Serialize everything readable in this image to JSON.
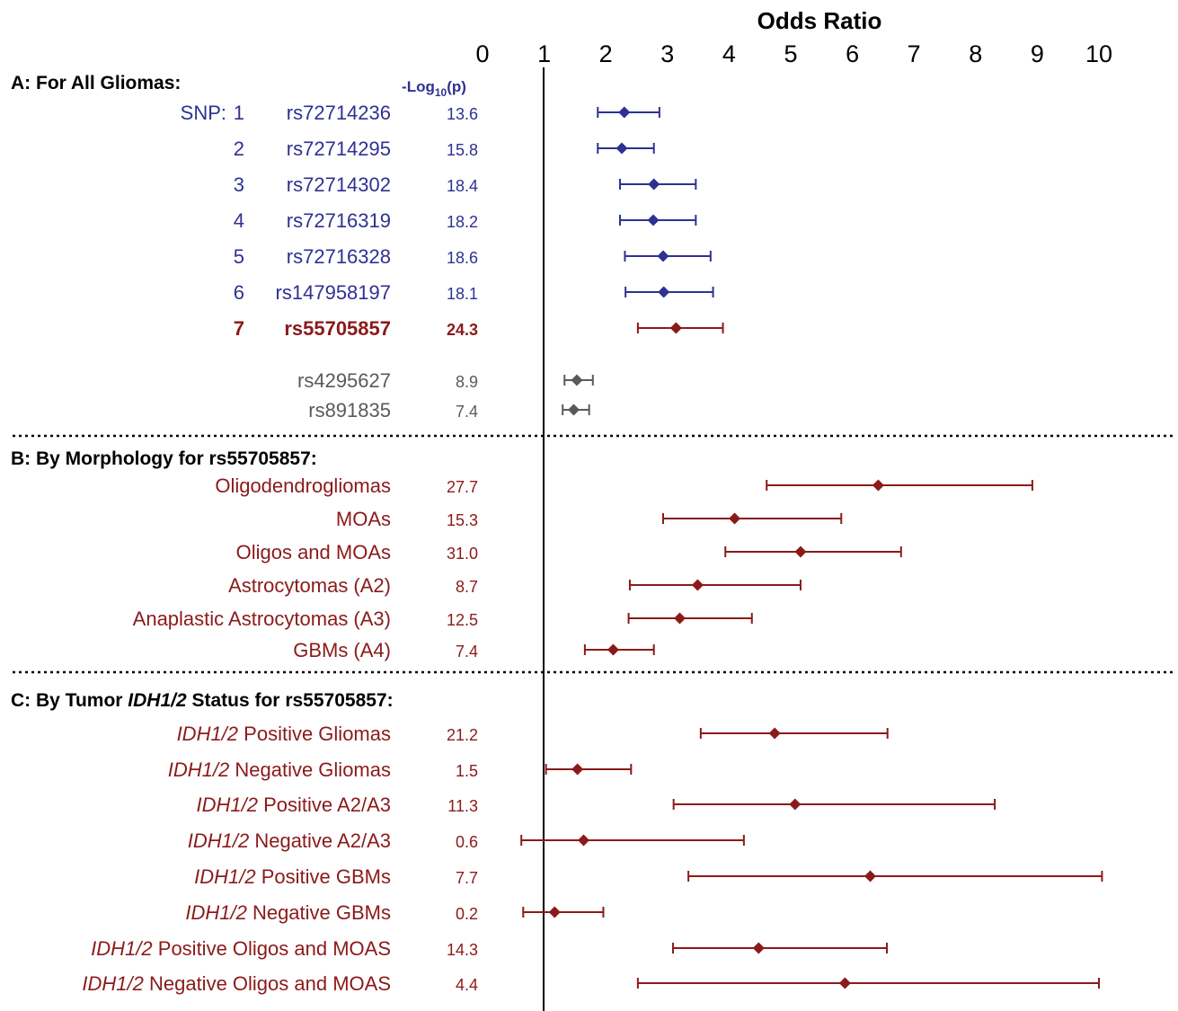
{
  "chart_data": {
    "type": "forest",
    "title": "Odds Ratio",
    "xlim": [
      0,
      10
    ],
    "xticks": [
      "0",
      "1",
      "2",
      "3",
      "4",
      "5",
      "6",
      "7",
      "8",
      "9",
      "10"
    ],
    "reference_line": 1,
    "pvalue_header": {
      "main": "-Log",
      "sub": "10",
      "tail": "(p)"
    },
    "colors": {
      "blue": "#2e3192",
      "red": "#8b1a1a",
      "gray": "#5a5a5a"
    },
    "sections": [
      {
        "title": "A: For All Gliomas:",
        "rows": [
          {
            "prefix": "SNP:",
            "num": "1",
            "label": "rs72714236",
            "p": "13.6",
            "or": 2.3,
            "lo": 1.87,
            "hi": 2.87,
            "color": "blue"
          },
          {
            "num": "2",
            "label": "rs72714295",
            "p": "15.8",
            "or": 2.26,
            "lo": 1.87,
            "hi": 2.78,
            "color": "blue"
          },
          {
            "num": "3",
            "label": "rs72714302",
            "p": "18.4",
            "or": 2.78,
            "lo": 2.23,
            "hi": 3.46,
            "color": "blue"
          },
          {
            "num": "4",
            "label": "rs72716319",
            "p": "18.2",
            "or": 2.77,
            "lo": 2.23,
            "hi": 3.46,
            "color": "blue"
          },
          {
            "num": "5",
            "label": "rs72716328",
            "p": "18.6",
            "or": 2.93,
            "lo": 2.31,
            "hi": 3.7,
            "color": "blue"
          },
          {
            "num": "6",
            "label": "rs147958197",
            "p": "18.1",
            "or": 2.94,
            "lo": 2.32,
            "hi": 3.74,
            "color": "blue"
          },
          {
            "num": "7",
            "label": "rs55705857",
            "p": "24.3",
            "or": 3.14,
            "lo": 2.52,
            "hi": 3.9,
            "color": "red",
            "bold": true
          },
          {
            "label": "rs4295627",
            "p": "8.9",
            "or": 1.53,
            "lo": 1.33,
            "hi": 1.79,
            "color": "gray"
          },
          {
            "label": "rs891835",
            "p": "7.4",
            "or": 1.48,
            "lo": 1.3,
            "hi": 1.73,
            "color": "gray"
          }
        ]
      },
      {
        "title": "B: By Morphology for rs55705857:",
        "rows": [
          {
            "label": "Oligodendrogliomas",
            "p": "27.7",
            "or": 6.42,
            "lo": 4.61,
            "hi": 8.92,
            "color": "red"
          },
          {
            "label": "MOAs",
            "p": "15.3",
            "or": 4.09,
            "lo": 2.93,
            "hi": 5.82,
            "color": "red"
          },
          {
            "label": "Oligos and MOAs",
            "p": "31.0",
            "or": 5.16,
            "lo": 3.94,
            "hi": 6.79,
            "color": "red"
          },
          {
            "label": "Astrocytomas (A2)",
            "p": "8.7",
            "or": 3.49,
            "lo": 2.39,
            "hi": 5.16,
            "color": "red"
          },
          {
            "label": "Anaplastic Astrocytomas (A3)",
            "p": "12.5",
            "or": 3.2,
            "lo": 2.37,
            "hi": 4.37,
            "color": "red"
          },
          {
            "label": "GBMs (A4)",
            "p": "7.4",
            "or": 2.12,
            "lo": 1.66,
            "hi": 2.78,
            "color": "red"
          }
        ]
      },
      {
        "title_pre": "C: By Tumor ",
        "title_em": "IDH1/2",
        "title_post": " Status for rs55705857:",
        "rows": [
          {
            "em": "IDH1/2",
            "label": " Positive Gliomas",
            "p": "21.2",
            "or": 4.74,
            "lo": 3.54,
            "hi": 6.57,
            "color": "red"
          },
          {
            "em": "IDH1/2",
            "label": " Negative Gliomas",
            "p": "1.5",
            "or": 1.54,
            "lo": 1.03,
            "hi": 2.41,
            "color": "red"
          },
          {
            "em": "IDH1/2",
            "label": " Positive A2/A3",
            "p": "11.3",
            "or": 5.07,
            "lo": 3.1,
            "hi": 8.31,
            "color": "red"
          },
          {
            "em": "IDH1/2",
            "label": " Negative A2/A3",
            "p": "0.6",
            "or": 1.64,
            "lo": 0.63,
            "hi": 4.24,
            "color": "red"
          },
          {
            "em": "IDH1/2",
            "label": " Positive GBMs",
            "p": "7.7",
            "or": 6.29,
            "lo": 3.34,
            "hi": 10.05,
            "color": "red"
          },
          {
            "em": "IDH1/2",
            "label": " Negative GBMs",
            "p": "0.2",
            "or": 1.17,
            "lo": 0.66,
            "hi": 1.96,
            "color": "red"
          },
          {
            "em": "IDH1/2",
            "label": " Positive Oligos and MOAS",
            "p": "14.3",
            "or": 4.48,
            "lo": 3.09,
            "hi": 6.56,
            "color": "red"
          },
          {
            "em": "IDH1/2",
            "label": " Negative Oligos and MOAS",
            "p": "4.4",
            "or": 5.88,
            "lo": 2.52,
            "hi": 10.0,
            "color": "red"
          }
        ]
      }
    ]
  }
}
